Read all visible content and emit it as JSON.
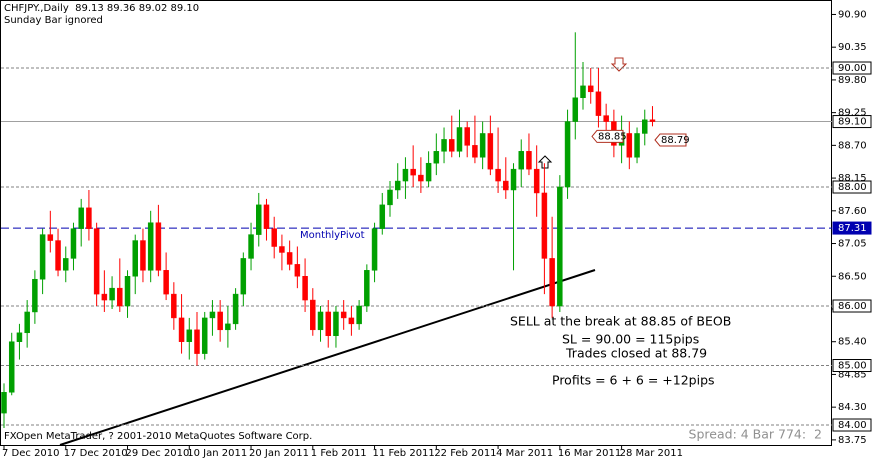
{
  "chart_data": {
    "type": "candlestick",
    "title": "CHFJPY.,Daily  89.13 89.36 89.02 89.10",
    "subtitle": "Sunday Bar ignored",
    "footer": "FXOpen MetaTrader, ? 2001-2010 MetaQuotes Software Corp.",
    "status": "Spread: 4 Bar 774:  2",
    "up_color": "#00a000",
    "down_color": "#ff0000",
    "categories": [
      "7 Dec 2010",
      null,
      null,
      null,
      null,
      null,
      null,
      null,
      "17 Dec 2010",
      null,
      null,
      null,
      null,
      null,
      null,
      null,
      "29 Dec 2010",
      null,
      null,
      null,
      null,
      null,
      null,
      null,
      "10 Jan 2011",
      null,
      null,
      null,
      null,
      null,
      null,
      null,
      "20 Jan 2011",
      null,
      null,
      null,
      null,
      null,
      null,
      null,
      "1 Feb 2011",
      null,
      null,
      null,
      null,
      null,
      null,
      null,
      "11 Feb 2011",
      null,
      null,
      null,
      null,
      null,
      null,
      null,
      "22 Feb 2011",
      null,
      null,
      null,
      null,
      null,
      null,
      null,
      "4 Mar 2011",
      null,
      null,
      null,
      null,
      null,
      null,
      null,
      "16 Mar 2011",
      null,
      null,
      null,
      null,
      null,
      null,
      null,
      "28 Mar 2011",
      null,
      null,
      null,
      null
    ],
    "open": [
      84.2,
      84.55,
      85.4,
      85.55,
      85.9,
      86.45,
      87.2,
      87.1,
      86.6,
      86.8,
      87.3,
      87.65,
      87.3,
      86.2,
      86.1,
      86.3,
      86.0,
      86.5,
      87.1,
      86.6,
      87.4,
      86.6,
      86.2,
      85.8,
      85.4,
      85.6,
      85.2,
      85.8,
      85.9,
      85.6,
      85.7,
      86.2,
      86.8,
      87.2,
      87.7,
      87.3,
      87.0,
      86.9,
      86.7,
      86.5,
      86.1,
      85.6,
      85.9,
      85.5,
      85.9,
      85.8,
      85.7,
      86.0,
      86.6,
      87.3,
      87.7,
      87.95,
      88.1,
      88.3,
      88.2,
      88.1,
      88.4,
      88.6,
      88.8,
      88.6,
      89.0,
      88.7,
      88.5,
      88.9,
      88.3,
      88.1,
      87.95,
      88.3,
      88.6,
      88.3,
      87.9,
      86.8,
      86.0,
      88.0,
      89.1,
      89.5,
      89.7,
      89.6,
      89.2,
      89.1,
      88.7,
      88.9,
      88.5,
      88.9,
      89.13
    ],
    "high": [
      84.7,
      85.55,
      85.7,
      86.1,
      86.6,
      87.3,
      87.6,
      87.3,
      87.0,
      87.4,
      87.8,
      87.95,
      87.4,
      86.6,
      86.5,
      86.8,
      86.6,
      87.2,
      87.3,
      87.6,
      87.7,
      86.9,
      86.4,
      86.2,
      85.8,
      85.9,
      85.9,
      86.1,
      86.1,
      86.0,
      86.3,
      86.9,
      87.4,
      87.9,
      87.8,
      87.5,
      87.2,
      87.1,
      87.0,
      86.8,
      86.3,
      86.0,
      86.1,
      86.0,
      86.1,
      86.0,
      86.1,
      86.7,
      87.4,
      87.9,
      88.1,
      88.4,
      88.5,
      88.7,
      88.5,
      88.6,
      88.9,
      89.0,
      89.2,
      89.3,
      89.1,
      89.2,
      89.1,
      89.2,
      89.0,
      88.5,
      88.4,
      88.8,
      88.9,
      88.7,
      88.4,
      87.5,
      88.2,
      89.3,
      90.6,
      90.1,
      90.0,
      90.0,
      89.4,
      89.3,
      89.2,
      89.1,
      89.0,
      89.3,
      89.36
    ],
    "low": [
      83.95,
      84.5,
      85.1,
      85.3,
      85.7,
      86.2,
      86.9,
      86.5,
      86.4,
      86.6,
      87.0,
      87.1,
      86.0,
      85.9,
      85.95,
      85.9,
      85.8,
      86.2,
      86.4,
      86.4,
      86.5,
      86.1,
      85.6,
      85.2,
      85.1,
      85.0,
      85.1,
      85.5,
      85.4,
      85.3,
      85.6,
      86.0,
      86.6,
      87.0,
      87.1,
      86.8,
      86.6,
      86.6,
      86.3,
      85.9,
      85.5,
      85.4,
      85.3,
      85.3,
      85.6,
      85.5,
      85.6,
      85.9,
      86.4,
      87.2,
      87.5,
      87.8,
      87.8,
      88.0,
      87.9,
      88.0,
      88.2,
      88.4,
      88.5,
      88.5,
      88.5,
      88.4,
      88.3,
      88.2,
      87.9,
      87.8,
      86.6,
      88.0,
      88.2,
      87.5,
      86.2,
      85.8,
      85.9,
      87.8,
      88.8,
      89.3,
      89.4,
      89.0,
      88.8,
      88.5,
      88.4,
      88.3,
      88.4,
      88.7,
      89.02
    ],
    "close": [
      84.55,
      85.4,
      85.55,
      85.9,
      86.45,
      87.2,
      87.1,
      86.6,
      86.8,
      87.3,
      87.65,
      87.3,
      86.2,
      86.1,
      86.3,
      86.0,
      86.5,
      87.1,
      86.6,
      87.4,
      86.6,
      86.2,
      85.8,
      85.4,
      85.6,
      85.2,
      85.8,
      85.9,
      85.6,
      85.7,
      86.2,
      86.8,
      87.2,
      87.7,
      87.3,
      87.0,
      86.9,
      86.7,
      86.5,
      86.1,
      85.6,
      85.9,
      85.5,
      85.9,
      85.8,
      85.7,
      86.0,
      86.6,
      87.3,
      87.7,
      87.95,
      88.1,
      88.3,
      88.2,
      88.1,
      88.4,
      88.6,
      88.8,
      88.6,
      89.0,
      88.7,
      88.5,
      88.9,
      88.3,
      88.1,
      87.95,
      88.3,
      88.6,
      88.3,
      87.9,
      86.8,
      86.0,
      88.0,
      89.1,
      89.5,
      89.7,
      89.6,
      89.2,
      89.1,
      88.7,
      88.9,
      88.5,
      88.9,
      89.13,
      89.1
    ],
    "ylim": [
      83.664,
      91.143
    ],
    "yticks": [
      {
        "value": 90.9,
        "label": "90.90"
      },
      90.35,
      {
        "value": 89.8,
        "label": "89.80"
      },
      89.25,
      {
        "value": 88.7,
        "label": "88.70"
      },
      88.15,
      {
        "value": 87.6,
        "label": "87.60"
      },
      87.05,
      {
        "value": 86.5,
        "label": "86.50"
      },
      85.95,
      {
        "value": 85.4,
        "label": "85.40"
      },
      84.85,
      {
        "value": 84.3,
        "label": "84.30"
      },
      83.75
    ],
    "levels": [
      {
        "value": 90,
        "label": "90.00",
        "color": "#808080",
        "dash": true
      },
      {
        "value": 89.1,
        "label": "89.10",
        "color": "#a0a0a0",
        "dash": false
      },
      {
        "value": 88,
        "label": "88.00",
        "color": "#808080",
        "dash": true
      },
      {
        "value": 87.31,
        "label": "87.31",
        "color": "#0000b0",
        "dash": true,
        "name": "MonthlyPivot"
      },
      {
        "value": 86,
        "label": "86.00",
        "color": "#808080",
        "dash": true
      },
      {
        "value": 85,
        "label": "85.00",
        "color": "#808080",
        "dash": true
      },
      {
        "value": 84,
        "label": "84.00",
        "color": "#808080",
        "dash": true
      }
    ],
    "price_labels": [
      88.85,
      88.79
    ],
    "annotations": [
      "SELL at the break at 88.85 of BEOB",
      "SL = 90.00 = 115pips",
      "Trades closed at 88.79",
      "Profits = 6 + 6 = +12pips"
    ]
  }
}
